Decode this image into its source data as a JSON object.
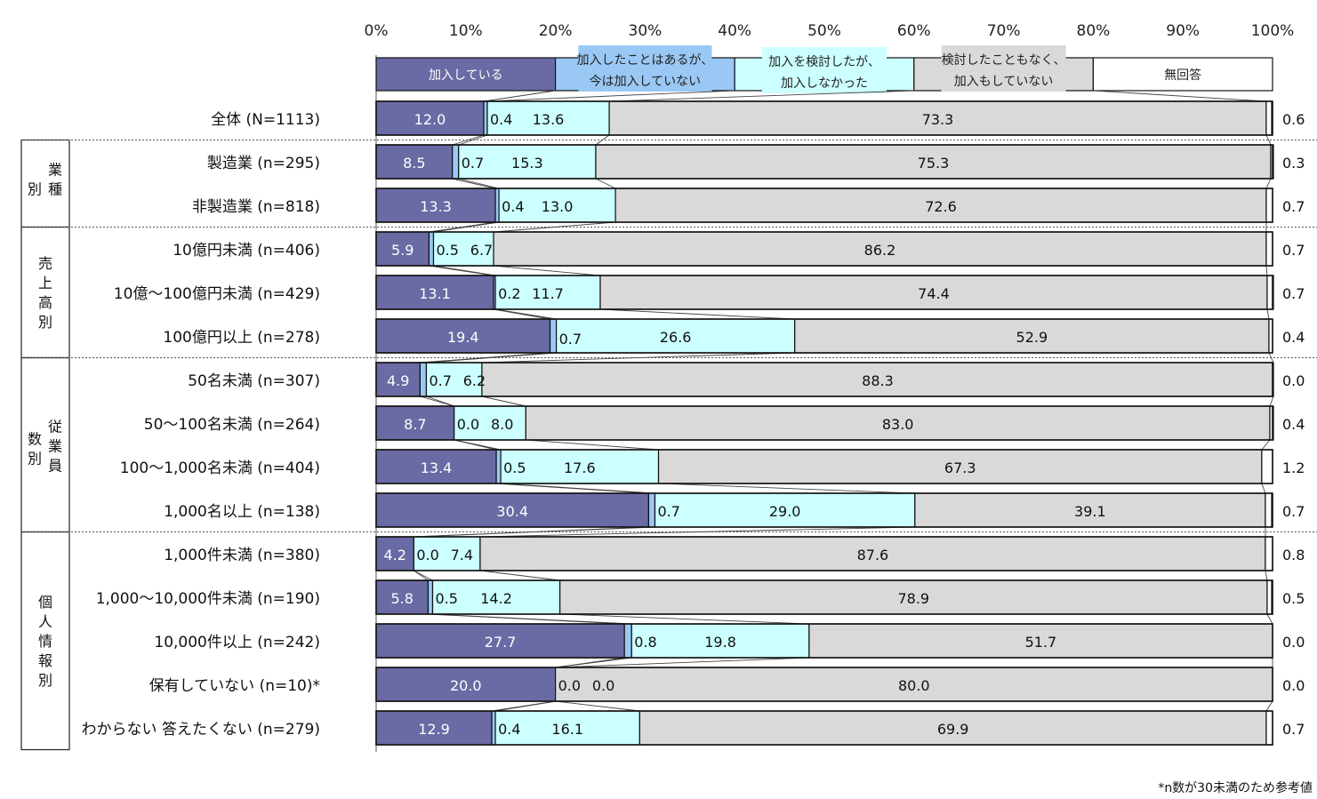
{
  "chart_data": {
    "type": "bar",
    "orientation": "horizontal",
    "stacked": true,
    "percent": true,
    "xlim": [
      0,
      100
    ],
    "x_ticks": [
      "0%",
      "10%",
      "20%",
      "30%",
      "40%",
      "50%",
      "60%",
      "70%",
      "80%",
      "90%",
      "100%"
    ],
    "legend": {
      "placement": "top",
      "entries": [
        {
          "lines": [
            "加入している"
          ]
        },
        {
          "lines": [
            "加入したことはあるが、",
            "今は加入していない"
          ]
        },
        {
          "lines": [
            "加入を検討したが、",
            "加入しなかった"
          ]
        },
        {
          "lines": [
            "検討したこともなく、",
            "加入もしていない"
          ]
        },
        {
          "lines": [
            "無回答"
          ]
        }
      ]
    },
    "series_colors": [
      "#6a6aa4",
      "#99c8f5",
      "#ccffff",
      "#d9d9d9",
      "#ffffff"
    ],
    "groups": [
      {
        "label": "",
        "rows": [
          0
        ]
      },
      {
        "label": "業種別",
        "rows": [
          1,
          2
        ]
      },
      {
        "label": "売上高別",
        "rows": [
          3,
          4,
          5
        ]
      },
      {
        "label": "従業員数別",
        "rows": [
          6,
          7,
          8,
          9
        ]
      },
      {
        "label": "個人情報別",
        "rows": [
          10,
          11,
          12,
          13,
          14
        ]
      }
    ],
    "rows": [
      {
        "label": "全体 (N=1113)",
        "values": [
          12.0,
          0.4,
          13.6,
          73.3,
          0.6
        ]
      },
      {
        "label": "製造業 (n=295)",
        "values": [
          8.5,
          0.7,
          15.3,
          75.3,
          0.3
        ]
      },
      {
        "label": "非製造業 (n=818)",
        "values": [
          13.3,
          0.4,
          13.0,
          72.6,
          0.7
        ]
      },
      {
        "label": "10億円未満 (n=406)",
        "values": [
          5.9,
          0.5,
          6.7,
          86.2,
          0.7
        ]
      },
      {
        "label": "10億～100億円未満 (n=429)",
        "values": [
          13.1,
          0.2,
          11.7,
          74.4,
          0.7
        ]
      },
      {
        "label": "100億円以上 (n=278)",
        "values": [
          19.4,
          0.7,
          26.6,
          52.9,
          0.4
        ]
      },
      {
        "label": "50名未満 (n=307)",
        "values": [
          4.9,
          0.7,
          6.2,
          88.3,
          0.0
        ]
      },
      {
        "label": "50～100名未満 (n=264)",
        "values": [
          8.7,
          0.0,
          8.0,
          83.0,
          0.4
        ]
      },
      {
        "label": "100～1,000名未満 (n=404)",
        "values": [
          13.4,
          0.5,
          17.6,
          67.3,
          1.2
        ]
      },
      {
        "label": "1,000名以上 (n=138)",
        "values": [
          30.4,
          0.7,
          29.0,
          39.1,
          0.7
        ]
      },
      {
        "label": "1,000件未満 (n=380)",
        "values": [
          4.2,
          0.0,
          7.4,
          87.6,
          0.8
        ]
      },
      {
        "label": "1,000～10,000件未満 (n=190)",
        "values": [
          5.8,
          0.5,
          14.2,
          78.9,
          0.5
        ]
      },
      {
        "label": "10,000件以上 (n=242)",
        "values": [
          27.7,
          0.8,
          19.8,
          51.7,
          0.0
        ]
      },
      {
        "label": "保有していない (n=10)*",
        "values": [
          20.0,
          0.0,
          0.0,
          80.0,
          0.0
        ]
      },
      {
        "label": "わからない 答えたくない (n=279)",
        "values": [
          12.9,
          0.4,
          16.1,
          69.9,
          0.7
        ]
      }
    ],
    "note": "*n数が30未満のため参考値"
  }
}
